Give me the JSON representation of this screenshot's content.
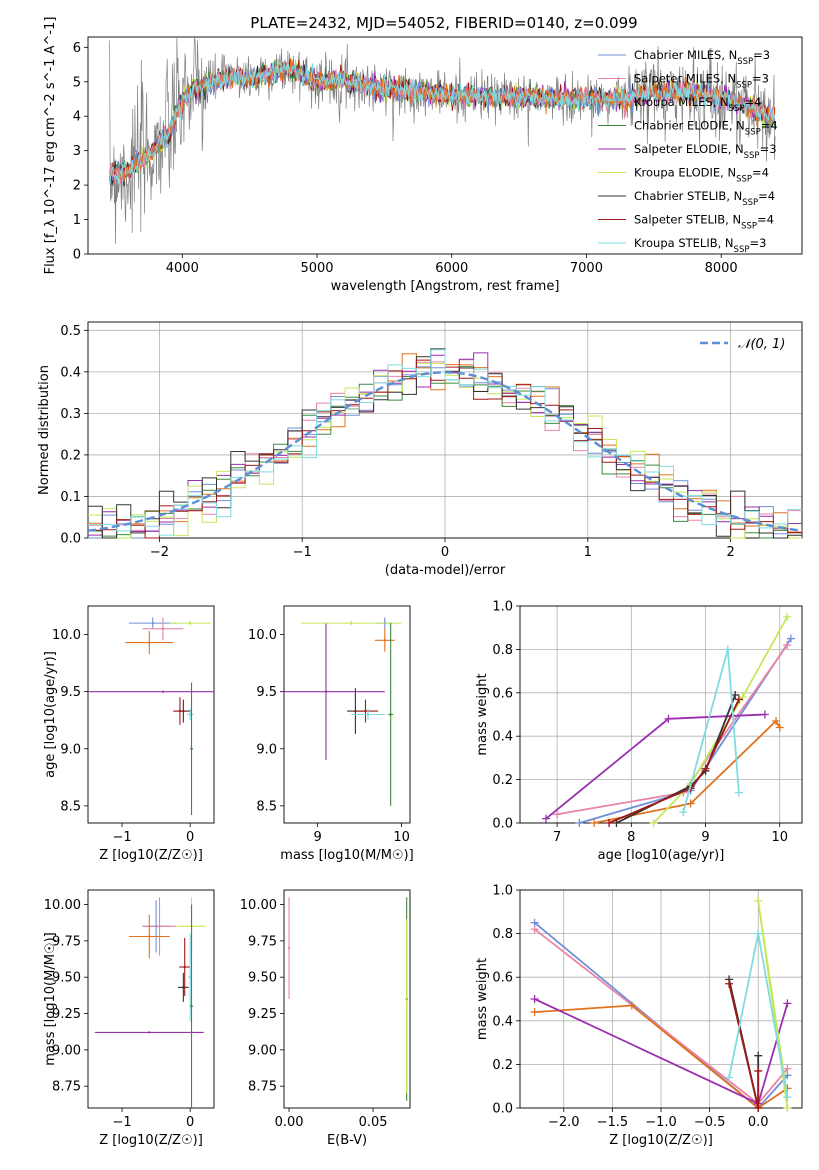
{
  "figure": {
    "title": "PLATE=2432, MJD=54052, FIBERID=0140, z=0.099"
  },
  "series_styles": [
    {
      "name": "Chabrier MILES, N_SSP=3",
      "color": "#6f8fd8"
    },
    {
      "name": "Salpeter MILES, N_SSP=3",
      "color": "#e884a8"
    },
    {
      "name": "Kroupa MILES, N_SSP=4",
      "color": "#e0721e"
    },
    {
      "name": "Chabrier ELODIE, N_SSP=4",
      "color": "#3c8a3c"
    },
    {
      "name": "Salpeter ELODIE, N_SSP=3",
      "color": "#9b2fae"
    },
    {
      "name": "Kroupa ELODIE, N_SSP=4",
      "color": "#c4e85a"
    },
    {
      "name": "Chabrier STELIB, N_SSP=4",
      "color": "#333333"
    },
    {
      "name": "Salpeter STELIB, N_SSP=4",
      "color": "#a01818"
    },
    {
      "name": "Kroupa STELIB, N_SSP=3",
      "color": "#7fdce0"
    }
  ],
  "chart_data": [
    {
      "id": "spectrum",
      "type": "line",
      "title": "PLATE=2432, MJD=54052, FIBERID=0140, z=0.099",
      "xlabel": "wavelength [Angstrom, rest frame]",
      "ylabel": "Flux [f_λ 10^-17 erg cm^-2 s^-1 A^-1]",
      "xlim": [
        3300,
        8600
      ],
      "ylim": [
        0,
        6.3
      ],
      "xticks": [
        4000,
        5000,
        6000,
        7000,
        8000
      ],
      "yticks": [
        0,
        1,
        2,
        3,
        4,
        5,
        6
      ],
      "legend": {
        "placement": "right",
        "entries": [
          {
            "base": "Chabrier MILES, N",
            "sub": "SSP",
            "tail": "=3"
          },
          {
            "base": "Salpeter MILES, N",
            "sub": "SSP",
            "tail": "=3"
          },
          {
            "base": "Kroupa MILES, N",
            "sub": "SSP",
            "tail": "=4"
          },
          {
            "base": "Chabrier ELODIE, N",
            "sub": "SSP",
            "tail": "=4"
          },
          {
            "base": "Salpeter ELODIE, N",
            "sub": "SSP",
            "tail": "=3"
          },
          {
            "base": "Kroupa ELODIE, N",
            "sub": "SSP",
            "tail": "=4"
          },
          {
            "base": "Chabrier STELIB, N",
            "sub": "SSP",
            "tail": "=4"
          },
          {
            "base": "Salpeter STELIB, N",
            "sub": "SSP",
            "tail": "=4"
          },
          {
            "base": "Kroupa STELIB, N",
            "sub": "SSP",
            "tail": "=3"
          }
        ]
      },
      "data_trend": {
        "x": [
          3450,
          3600,
          3750,
          3900,
          4000,
          4100,
          4300,
          4500,
          4700,
          4800,
          5000,
          5200,
          5500,
          6000,
          6500,
          7000,
          7300,
          7500,
          7800,
          8000,
          8400
        ],
        "y": [
          2.3,
          2.4,
          2.9,
          3.5,
          4.5,
          4.8,
          5.1,
          5.1,
          5.3,
          5.4,
          5.0,
          5.05,
          4.8,
          4.6,
          4.55,
          4.5,
          4.5,
          4.7,
          4.7,
          4.55,
          3.95
        ]
      }
    },
    {
      "id": "residuals",
      "type": "line",
      "xlabel": "(data-model)/error",
      "ylabel": "Normed distribution",
      "xlim": [
        -2.5,
        2.5
      ],
      "ylim": [
        0,
        0.52
      ],
      "xticks": [
        -2,
        -1,
        0,
        1,
        2
      ],
      "yticks": [
        0.0,
        0.1,
        0.2,
        0.3,
        0.4,
        0.5
      ],
      "grid": true,
      "legend": {
        "placement": "top-right",
        "label": "𝒩(0, 1)"
      },
      "reference_curve": {
        "name": "N(0,1)",
        "mean": 0,
        "sigma": 1,
        "style": "dashed"
      },
      "histograms": "step histograms for 9 series, bin width 0.1, following N(0,1)"
    },
    {
      "id": "age-vs-z",
      "type": "scatter",
      "xlabel": "Z [log10(Z/Z☉)]",
      "ylabel": "age [log10(age/yr)]",
      "xlim": [
        -1.5,
        0.35
      ],
      "ylim": [
        8.35,
        10.25
      ],
      "xticks": [
        -1,
        0
      ],
      "yticks": [
        8.5,
        9.0,
        9.5,
        10.0
      ],
      "points": [
        {
          "series": 0,
          "x": -0.55,
          "y": 10.1,
          "xerr": 0.35,
          "yerr": 0.05
        },
        {
          "series": 1,
          "x": -0.4,
          "y": 10.05,
          "xerr": 0.3,
          "yerr": 0.1
        },
        {
          "series": 2,
          "x": -0.6,
          "y": 9.93,
          "xerr": 0.35,
          "yerr": 0.1
        },
        {
          "series": 4,
          "x": -0.4,
          "y": 9.5,
          "xerr": 1.1,
          "yerr": 0.0
        },
        {
          "series": 5,
          "x": 0.0,
          "y": 10.1,
          "xerr": 0.3,
          "yerr": 0.02
        },
        {
          "series": 6,
          "x": -0.1,
          "y": 9.33,
          "xerr": 0.12,
          "yerr": 0.1
        },
        {
          "series": 7,
          "x": -0.15,
          "y": 9.33,
          "xerr": 0.1,
          "yerr": 0.12
        },
        {
          "series": 8,
          "x": 0.0,
          "y": 9.3,
          "xerr": 0.05,
          "yerr": 0.05
        },
        {
          "series": 3,
          "x": 0.02,
          "y": 9.0,
          "xerr": 0.02,
          "yerr": 0.58
        }
      ]
    },
    {
      "id": "age-vs-mass",
      "type": "scatter",
      "xlabel": "mass [log10(M/M☉)]",
      "ylabel": "",
      "xlim": [
        8.6,
        10.1
      ],
      "ylim": [
        8.35,
        10.25
      ],
      "xticks": [
        9,
        10
      ],
      "yticks": [
        8.5,
        9.0,
        9.5,
        10.0
      ],
      "points": [
        {
          "series": 0,
          "x": 9.8,
          "y": 10.1,
          "xerr": 0.1,
          "yerr": 0.05
        },
        {
          "series": 2,
          "x": 9.8,
          "y": 9.95,
          "xerr": 0.12,
          "yerr": 0.1
        },
        {
          "series": 4,
          "x": 9.1,
          "y": 9.5,
          "xerr": 0.7,
          "yerr": 0.6
        },
        {
          "series": 5,
          "x": 9.4,
          "y": 10.1,
          "xerr": 0.6,
          "yerr": 0.02
        },
        {
          "series": 6,
          "x": 9.45,
          "y": 9.33,
          "xerr": 0.1,
          "yerr": 0.2
        },
        {
          "series": 7,
          "x": 9.57,
          "y": 9.33,
          "xerr": 0.15,
          "yerr": 0.1
        },
        {
          "series": 8,
          "x": 9.6,
          "y": 9.3,
          "xerr": 0.2,
          "yerr": 0.05
        },
        {
          "series": 3,
          "x": 9.87,
          "y": 9.3,
          "xerr": 0.03,
          "yerr": 0.8
        }
      ]
    },
    {
      "id": "massweight-vs-age",
      "type": "line",
      "xlabel": "age [log10(age/yr)]",
      "ylabel": "mass weight",
      "xlim": [
        6.5,
        10.3
      ],
      "ylim": [
        0,
        1.0
      ],
      "xticks": [
        7,
        8,
        9,
        10
      ],
      "yticks": [
        0.0,
        0.2,
        0.4,
        0.6,
        0.8,
        1.0
      ],
      "grid": true,
      "series": [
        {
          "series": 0,
          "x": [
            7.3,
            8.8,
            10.15
          ],
          "y": [
            0.0,
            0.15,
            0.85
          ]
        },
        {
          "series": 1,
          "x": [
            7.0,
            8.7,
            10.1
          ],
          "y": [
            0.04,
            0.14,
            0.82
          ]
        },
        {
          "series": 2,
          "x": [
            7.5,
            8.8,
            9.95,
            10.0
          ],
          "y": [
            0.0,
            0.09,
            0.47,
            0.44
          ]
        },
        {
          "series": 4,
          "x": [
            6.85,
            8.5,
            9.8
          ],
          "y": [
            0.02,
            0.48,
            0.5
          ]
        },
        {
          "series": 5,
          "x": [
            8.3,
            8.8,
            9.5,
            10.1
          ],
          "y": [
            0.0,
            0.18,
            0.58,
            0.95
          ]
        },
        {
          "series": 6,
          "x": [
            7.8,
            8.8,
            9.0,
            9.4
          ],
          "y": [
            0.0,
            0.17,
            0.24,
            0.59
          ]
        },
        {
          "series": 7,
          "x": [
            7.7,
            8.8,
            9.0,
            9.45
          ],
          "y": [
            0.0,
            0.16,
            0.25,
            0.57
          ]
        },
        {
          "series": 8,
          "x": [
            8.7,
            9.3,
            9.45
          ],
          "y": [
            0.05,
            0.8,
            0.14
          ]
        }
      ]
    },
    {
      "id": "mass-vs-z",
      "type": "scatter",
      "xlabel": "Z [log10(Z/Z☉)]",
      "ylabel": "mass [log10(M/M☉)]",
      "xlim": [
        -1.5,
        0.35
      ],
      "ylim": [
        8.6,
        10.1
      ],
      "xticks": [
        -1,
        0
      ],
      "yticks": [
        8.75,
        9.0,
        9.25,
        9.5,
        9.75,
        10.0
      ],
      "points": [
        {
          "series": 0,
          "x": -0.5,
          "y": 9.85,
          "xerr": 0.2,
          "yerr": 0.18
        },
        {
          "series": 1,
          "x": -0.45,
          "y": 9.85,
          "xerr": 0.25,
          "yerr": 0.2
        },
        {
          "series": 2,
          "x": -0.6,
          "y": 9.78,
          "xerr": 0.3,
          "yerr": 0.15
        },
        {
          "series": 4,
          "x": -0.6,
          "y": 9.12,
          "xerr": 0.8,
          "yerr": 0.0
        },
        {
          "series": 5,
          "x": 0.02,
          "y": 9.85,
          "xerr": 0.2,
          "yerr": 0.2
        },
        {
          "series": 6,
          "x": -0.1,
          "y": 9.43,
          "xerr": 0.08,
          "yerr": 0.1
        },
        {
          "series": 7,
          "x": -0.08,
          "y": 9.57,
          "xerr": 0.08,
          "yerr": 0.2
        },
        {
          "series": 8,
          "x": 0.0,
          "y": 9.5,
          "xerr": 0.03,
          "yerr": 0.3
        },
        {
          "series": 3,
          "x": 0.02,
          "y": 9.3,
          "xerr": 0.02,
          "yerr": 0.7
        }
      ]
    },
    {
      "id": "mass-vs-ebv",
      "type": "scatter",
      "xlabel": "E(B-V)",
      "ylabel": "",
      "xlim": [
        -0.003,
        0.072
      ],
      "ylim": [
        8.6,
        10.1
      ],
      "xticks": [
        0.0,
        0.05
      ],
      "yticks": [
        8.75,
        9.0,
        9.25,
        9.5,
        9.75,
        10.0
      ],
      "points": [
        {
          "series": 1,
          "x": 0.0,
          "y": 9.7,
          "xerr": 0.0,
          "yerr": 0.35
        },
        {
          "series": 3,
          "x": 0.07,
          "y": 9.35,
          "xerr": 0.0,
          "yerr": 0.7
        },
        {
          "series": 5,
          "x": 0.07,
          "y": 9.3,
          "xerr": 0.0,
          "yerr": 0.6
        }
      ]
    },
    {
      "id": "massweight-vs-z",
      "type": "line",
      "xlabel": "Z [log10(Z/Z☉)]",
      "ylabel": "mass weight",
      "xlim": [
        -2.45,
        0.45
      ],
      "ylim": [
        0,
        1.0
      ],
      "xticks": [
        -2.0,
        -1.5,
        -1.0,
        -0.5,
        0.0
      ],
      "yticks": [
        0.0,
        0.2,
        0.4,
        0.6,
        0.8,
        1.0
      ],
      "grid": true,
      "series": [
        {
          "series": 0,
          "x": [
            -2.3,
            0.0,
            0.3
          ],
          "y": [
            0.85,
            0.0,
            0.15
          ]
        },
        {
          "series": 1,
          "x": [
            -2.3,
            0.0,
            0.3
          ],
          "y": [
            0.82,
            0.02,
            0.18
          ]
        },
        {
          "series": 2,
          "x": [
            -2.3,
            -1.3,
            0.0,
            0.3
          ],
          "y": [
            0.44,
            0.47,
            0.0,
            0.09
          ]
        },
        {
          "series": 4,
          "x": [
            -2.3,
            0.0,
            0.3
          ],
          "y": [
            0.5,
            0.02,
            0.48
          ]
        },
        {
          "series": 5,
          "x": [
            0.3,
            0.0,
            0.3
          ],
          "y": [
            0.0,
            0.95,
            0.05
          ]
        },
        {
          "series": 6,
          "x": [
            -0.3,
            0.0,
            0.0
          ],
          "y": [
            0.59,
            0.0,
            0.24
          ]
        },
        {
          "series": 7,
          "x": [
            -0.3,
            0.0,
            0.0
          ],
          "y": [
            0.57,
            0.0,
            0.17
          ]
        },
        {
          "series": 8,
          "x": [
            -0.3,
            0.0,
            0.3
          ],
          "y": [
            0.14,
            0.8,
            0.05
          ]
        }
      ]
    }
  ]
}
